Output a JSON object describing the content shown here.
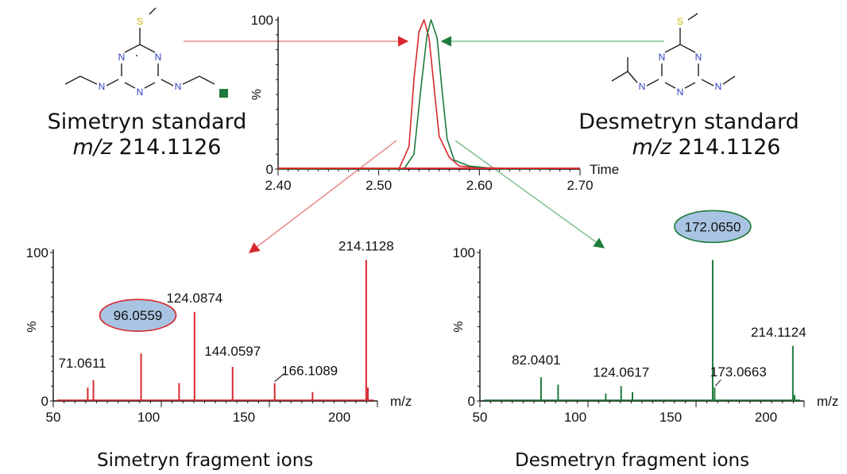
{
  "compounds": {
    "simetryn": {
      "name": "Simetryn standard",
      "mz_label": "m/z",
      "mz_value": "214.1126"
    },
    "desmetryn": {
      "name": "Desmetryn standard",
      "mz_label": "m/z",
      "mz_value": "214.1126"
    }
  },
  "captions": {
    "simetryn": "Simetryn fragment ions",
    "desmetryn": "Desmetryn fragment ions"
  },
  "colors": {
    "simetryn": "#d7282f",
    "desmetryn": "#1f7a3c",
    "highlight_fill": "#a9c4e2"
  },
  "atoms": {
    "n": "N",
    "s": "S"
  },
  "chart_data": [
    {
      "id": "chromatogram",
      "type": "line",
      "xlabel": "Time",
      "ylabel": "%",
      "xlim": [
        2.4,
        2.7
      ],
      "ylim": [
        0,
        100
      ],
      "xticks": [
        "2.40",
        "2.50",
        "2.60",
        "2.70"
      ],
      "yticks": [
        "0",
        "100"
      ],
      "series": [
        {
          "color": "#d7282f",
          "x": [
            2.4,
            2.5,
            2.52,
            2.53,
            2.535,
            2.54,
            2.545,
            2.55,
            2.555,
            2.56,
            2.57,
            2.58,
            2.6,
            2.66
          ],
          "y": [
            0,
            0,
            0,
            15,
            60,
            92,
            100,
            88,
            55,
            22,
            8,
            2,
            1,
            0
          ]
        },
        {
          "color": "#1f7a3c",
          "x": [
            2.4,
            2.51,
            2.525,
            2.535,
            2.542,
            2.548,
            2.552,
            2.558,
            2.563,
            2.568,
            2.575,
            2.59,
            2.62,
            2.67
          ],
          "y": [
            0,
            0,
            0,
            10,
            55,
            90,
            100,
            88,
            52,
            20,
            6,
            2,
            0,
            0
          ]
        }
      ]
    },
    {
      "id": "simetryn-spectrum",
      "type": "bar",
      "xlabel": "m/z",
      "ylabel": "%",
      "xlim": [
        50,
        220
      ],
      "ylim": [
        0,
        100
      ],
      "xticks": [
        "50",
        "100",
        "150",
        "200"
      ],
      "yticks": [
        "0",
        "100"
      ],
      "peaks": [
        {
          "mz": 68.1,
          "y": 9
        },
        {
          "mz": 71.0611,
          "y": 14,
          "label": "71.0611"
        },
        {
          "mz": 96.0559,
          "y": 32,
          "label": "96.0559",
          "highlight": true
        },
        {
          "mz": 116.0,
          "y": 12
        },
        {
          "mz": 124.0874,
          "y": 60,
          "label": "124.0874"
        },
        {
          "mz": 144.0597,
          "y": 23,
          "label": "144.0597"
        },
        {
          "mz": 166.1089,
          "y": 12,
          "label": "166.1089"
        },
        {
          "mz": 186.0,
          "y": 6
        },
        {
          "mz": 214.1128,
          "y": 95,
          "label": "214.1128"
        },
        {
          "mz": 215.0,
          "y": 9
        }
      ]
    },
    {
      "id": "desmetryn-spectrum",
      "type": "bar",
      "xlabel": "m/z",
      "ylabel": "%",
      "xlim": [
        50,
        220
      ],
      "ylim": [
        0,
        100
      ],
      "xticks": [
        "50",
        "100",
        "150",
        "200"
      ],
      "yticks": [
        "0",
        "100"
      ],
      "peaks": [
        {
          "mz": 82.0401,
          "y": 16,
          "label": "82.0401"
        },
        {
          "mz": 91.0,
          "y": 11
        },
        {
          "mz": 116.0,
          "y": 5
        },
        {
          "mz": 124.0617,
          "y": 10,
          "label": "124.0617"
        },
        {
          "mz": 130.0,
          "y": 6
        },
        {
          "mz": 172.065,
          "y": 95,
          "label": "172.0650",
          "highlight": true
        },
        {
          "mz": 173.0663,
          "y": 9,
          "label": "173.0663"
        },
        {
          "mz": 214.1124,
          "y": 37,
          "label": "214.1124"
        },
        {
          "mz": 215.0,
          "y": 4
        }
      ]
    }
  ]
}
